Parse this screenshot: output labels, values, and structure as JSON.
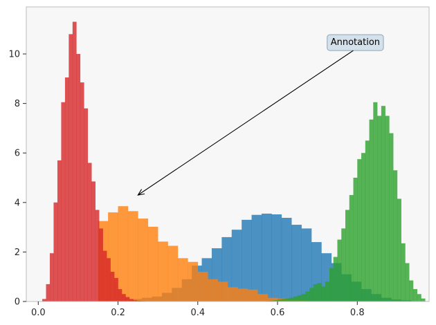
{
  "chart_data": {
    "type": "histogram",
    "title": "",
    "xlabel": "",
    "ylabel": "",
    "xlim": [
      -0.03,
      0.98
    ],
    "ylim": [
      0,
      11.9
    ],
    "x_ticks": [
      0.0,
      0.2,
      0.4,
      0.6,
      0.8
    ],
    "x_tick_labels": [
      "0.0",
      "0.2",
      "0.4",
      "0.6",
      "0.8"
    ],
    "y_ticks": [
      0,
      2,
      4,
      6,
      8,
      10
    ],
    "y_tick_labels": [
      "0",
      "2",
      "4",
      "6",
      "8",
      "10"
    ],
    "background": "#f7f7f7",
    "series": [
      {
        "name": "blue",
        "color": "#1f77b4",
        "alpha": 0.8,
        "bin_start": 0.235,
        "bin_width": 0.025,
        "values": [
          0.1,
          0.15,
          0.2,
          0.35,
          0.55,
          0.9,
          1.45,
          1.75,
          2.15,
          2.6,
          2.9,
          3.3,
          3.5,
          3.55,
          3.52,
          3.38,
          3.1,
          2.95,
          2.4,
          1.95,
          1.55,
          1.1,
          0.8,
          0.5,
          0.3,
          0.15,
          0.08,
          0.05
        ]
      },
      {
        "name": "orange",
        "color": "#ff7f0e",
        "alpha": 0.8,
        "bin_start": 0.15,
        "bin_width": 0.025,
        "values": [
          3.25,
          3.6,
          3.85,
          3.65,
          3.35,
          3.02,
          2.42,
          2.25,
          1.75,
          1.6,
          1.2,
          0.9,
          0.8,
          0.58,
          0.52,
          0.48,
          0.3,
          0.15,
          0.12,
          0.08,
          0.05
        ]
      },
      {
        "name": "green",
        "color": "#2ca02c",
        "alpha": 0.8,
        "bin_start": 0.57,
        "bin_width": 0.01,
        "values": [
          0.02,
          0.03,
          0.05,
          0.08,
          0.1,
          0.12,
          0.15,
          0.2,
          0.25,
          0.3,
          0.4,
          0.55,
          0.7,
          0.75,
          0.6,
          0.8,
          1.35,
          1.8,
          2.5,
          2.95,
          3.7,
          4.3,
          5.0,
          5.75,
          6.0,
          6.5,
          7.35,
          8.05,
          7.5,
          7.9,
          7.5,
          6.8,
          5.3,
          4.15,
          2.35,
          1.55,
          0.85,
          0.5,
          0.3,
          0.12
        ]
      },
      {
        "name": "red",
        "color": "#d62728",
        "alpha": 0.8,
        "bin_start": 0.01,
        "bin_width": 0.0095,
        "values": [
          0.1,
          0.7,
          1.95,
          4.0,
          5.7,
          8.05,
          9.05,
          10.8,
          11.3,
          10.0,
          8.85,
          7.8,
          5.6,
          4.85,
          3.7,
          2.95,
          2.05,
          1.75,
          1.2,
          0.95,
          0.5,
          0.3,
          0.18,
          0.1,
          0.05,
          0.03,
          0.02,
          0.01
        ]
      }
    ],
    "annotations": [
      {
        "text": "Annotation",
        "xy": [
          0.25,
          4.3
        ],
        "xytext": [
          0.795,
          10.5
        ],
        "box_fill": "#d4e0ea",
        "box_edge": "#8da4b6"
      }
    ]
  }
}
